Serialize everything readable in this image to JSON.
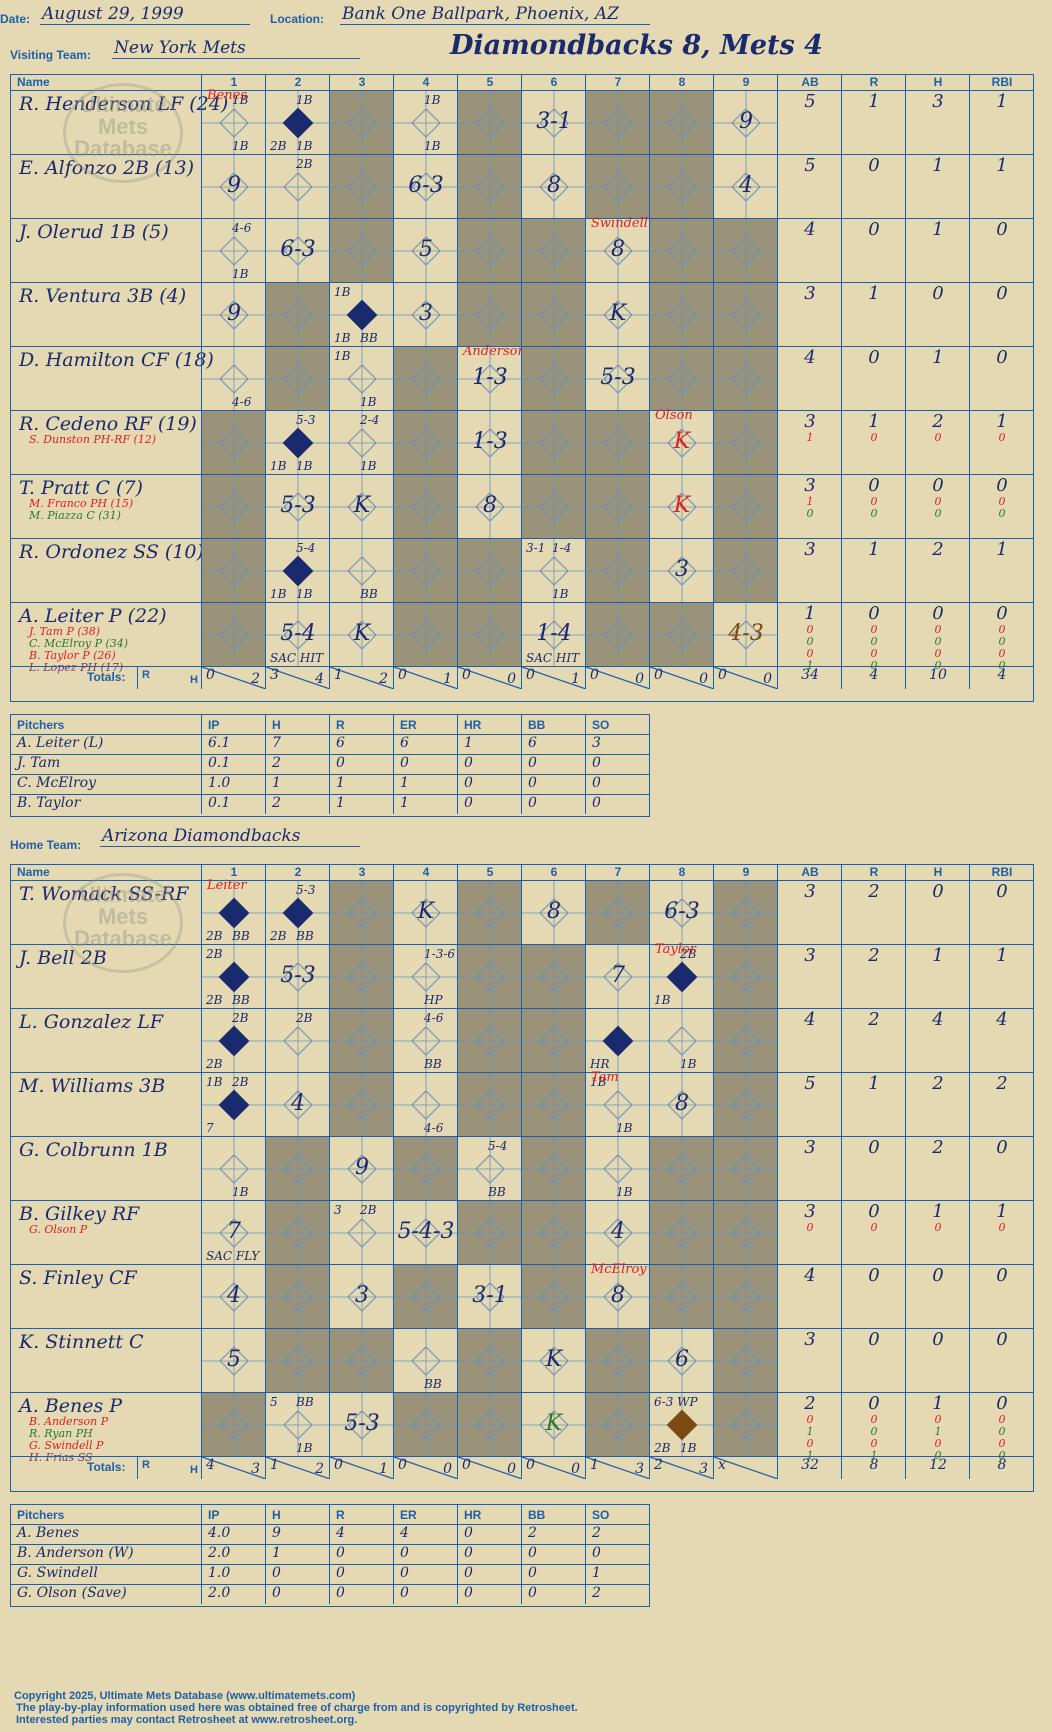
{
  "header": {
    "date_label": "Date:",
    "date": "August 29, 1999",
    "location_label": "Location:",
    "location": "Bank One Ballpark, Phoenix, AZ",
    "visiting_label": "Visiting Team:",
    "visiting_team": "New York Mets",
    "title": "Diamondbacks 8, Mets 4",
    "home_label": "Home Team:",
    "home_team": "Arizona Diamondbacks"
  },
  "columns": {
    "name": "Name",
    "innings": [
      "1",
      "2",
      "3",
      "4",
      "5",
      "6",
      "7",
      "8",
      "9"
    ],
    "stats": [
      "AB",
      "R",
      "H",
      "RBI"
    ],
    "totals_label": "Totals:",
    "r_label": "R",
    "h_label": "H"
  },
  "watermark": {
    "text": "Ultimate Mets Database",
    "url": "ultimatemets.com"
  },
  "visitors": {
    "players": [
      {
        "name": "R. Henderson LF (24)",
        "subs": [],
        "stats": [
          "5",
          "1",
          "3",
          "1"
        ],
        "substats": []
      },
      {
        "name": "E. Alfonzo 2B (13)",
        "subs": [],
        "stats": [
          "5",
          "0",
          "1",
          "1"
        ],
        "substats": []
      },
      {
        "name": "J. Olerud 1B (5)",
        "subs": [],
        "stats": [
          "4",
          "0",
          "1",
          "0"
        ],
        "substats": []
      },
      {
        "name": "R. Ventura 3B (4)",
        "subs": [],
        "stats": [
          "3",
          "1",
          "0",
          "0"
        ],
        "substats": []
      },
      {
        "name": "D. Hamilton CF (18)",
        "subs": [],
        "stats": [
          "4",
          "0",
          "1",
          "0"
        ],
        "substats": []
      },
      {
        "name": "R. Cedeno RF (19)",
        "subs": [
          "S. Dunston PH-RF (12)"
        ],
        "stats": [
          "3",
          "1",
          "2",
          "1"
        ],
        "substats": [
          [
            "1",
            "0",
            "0",
            "0"
          ]
        ]
      },
      {
        "name": "T. Pratt C (7)",
        "subs": [
          "M. Franco PH (15)",
          "M. Piazza C (31)"
        ],
        "stats": [
          "3",
          "0",
          "0",
          "0"
        ],
        "substats": [
          [
            "1",
            "0",
            "0",
            "0"
          ],
          [
            "0",
            "0",
            "0",
            "0"
          ]
        ]
      },
      {
        "name": "R. Ordonez SS (10)",
        "subs": [],
        "stats": [
          "3",
          "1",
          "2",
          "1"
        ],
        "substats": []
      },
      {
        "name": "A. Leiter P (22)",
        "subs": [
          "J. Tam P (38)",
          "C. McElroy P (34)",
          "B. Taylor P (26)",
          "L. Lopez PH (17)"
        ],
        "stats": [
          "1",
          "0",
          "0",
          "0"
        ],
        "substats": [
          [
            "0",
            "0",
            "0",
            "0"
          ],
          [
            "0",
            "0",
            "0",
            "0"
          ],
          [
            "0",
            "0",
            "0",
            "0"
          ],
          [
            "1",
            "0",
            "0",
            "0"
          ]
        ]
      }
    ],
    "cells": [
      [
        {
          "tr": "1B",
          "br": "1B",
          "note": "Benes"
        },
        {
          "d": "run",
          "tr": "1B",
          "bl": "2B",
          "br": "1B"
        },
        {},
        {
          "tr": "1B",
          "br": "1B"
        },
        {},
        {
          "p": "3-1"
        },
        {},
        {},
        {
          "p": "9"
        }
      ],
      [
        {
          "p": "9"
        },
        {
          "tr": "2B"
        },
        {},
        {
          "p": "6-3"
        },
        {},
        {
          "p": "8"
        },
        {},
        {},
        {
          "p": "4"
        }
      ],
      [
        {
          "tr": "4-6",
          "br": "1B"
        },
        {
          "p": "6-3"
        },
        {},
        {
          "p": "5"
        },
        {},
        {},
        {
          "p": "8",
          "note": "Swindell"
        },
        {},
        {}
      ],
      [
        {
          "p": "9"
        },
        {},
        {
          "d": "run",
          "tl": "1B",
          "bl": "1B",
          "br": "BB"
        },
        {
          "p": "3"
        },
        {},
        {},
        {
          "p": "K"
        },
        {},
        {}
      ],
      [
        {
          "br": "4-6"
        },
        {},
        {
          "tl": "1B",
          "br": "1B"
        },
        {},
        {
          "p": "1-3",
          "note": "Anderson"
        },
        {},
        {
          "p": "5-3"
        },
        {},
        {}
      ],
      [
        {},
        {
          "d": "run",
          "tr": "5-3",
          "bl": "1B",
          "br": "1B"
        },
        {
          "tr": "2-4",
          "br": "1B"
        },
        {},
        {
          "p": "1-3"
        },
        {},
        {},
        {
          "p": "K",
          "red": true,
          "note": "Olson"
        },
        {}
      ],
      [
        {},
        {
          "p": "5-3"
        },
        {
          "p": "K"
        },
        {},
        {
          "p": "8"
        },
        {},
        {},
        {
          "p": "K",
          "red": true
        },
        {}
      ],
      [
        {},
        {
          "d": "run",
          "tr": "5-4",
          "bl": "1B",
          "br": "1B"
        },
        {
          "br": "BB"
        },
        {},
        {},
        {
          "tl": "3-1",
          "tr": "1-4",
          "br": "1B"
        },
        {},
        {
          "p": "3"
        },
        {}
      ],
      [
        {},
        {
          "p": "5-4",
          "bl": "SAC HIT"
        },
        {
          "p": "K"
        },
        {},
        {},
        {
          "p": "1-4",
          "bl": "SAC HIT"
        },
        {},
        {},
        {
          "p": "4-3",
          "brown": true
        }
      ]
    ],
    "shade": [
      [
        0,
        0,
        1,
        0,
        1,
        0,
        1,
        1,
        0
      ],
      [
        0,
        0,
        1,
        0,
        1,
        0,
        1,
        1,
        0
      ],
      [
        0,
        0,
        1,
        0,
        1,
        1,
        0,
        1,
        1
      ],
      [
        0,
        1,
        0,
        0,
        1,
        1,
        0,
        1,
        1
      ],
      [
        0,
        1,
        0,
        1,
        0,
        1,
        0,
        1,
        1
      ],
      [
        1,
        0,
        0,
        1,
        0,
        1,
        1,
        0,
        1
      ],
      [
        1,
        0,
        0,
        1,
        0,
        1,
        1,
        0,
        1
      ],
      [
        1,
        0,
        0,
        1,
        1,
        0,
        1,
        0,
        1
      ],
      [
        1,
        0,
        0,
        1,
        1,
        0,
        1,
        1,
        0
      ]
    ],
    "totals": [
      [
        "0",
        "2"
      ],
      [
        "3",
        "4"
      ],
      [
        "1",
        "2"
      ],
      [
        "0",
        "1"
      ],
      [
        "0",
        "0"
      ],
      [
        "0",
        "1"
      ],
      [
        "0",
        "0"
      ],
      [
        "0",
        "0"
      ],
      [
        "0",
        "0"
      ]
    ],
    "totals_stats": [
      "34",
      "4",
      "10",
      "4"
    ],
    "pitchers_label": "Pitchers",
    "pitch_cols": [
      "IP",
      "H",
      "R",
      "ER",
      "HR",
      "BB",
      "SO"
    ],
    "pitchers": [
      [
        "A. Leiter (L)",
        "6.1",
        "7",
        "6",
        "6",
        "1",
        "6",
        "3"
      ],
      [
        "J. Tam",
        "0.1",
        "2",
        "0",
        "0",
        "0",
        "0",
        "0"
      ],
      [
        "C. McElroy",
        "1.0",
        "1",
        "1",
        "1",
        "0",
        "0",
        "0"
      ],
      [
        "B. Taylor",
        "0.1",
        "2",
        "1",
        "1",
        "0",
        "0",
        "0"
      ]
    ]
  },
  "home": {
    "players": [
      {
        "name": "T. Womack SS-RF",
        "subs": [],
        "stats": [
          "3",
          "2",
          "0",
          "0"
        ],
        "substats": []
      },
      {
        "name": "J. Bell 2B",
        "subs": [],
        "stats": [
          "3",
          "2",
          "1",
          "1"
        ],
        "substats": []
      },
      {
        "name": "L. Gonzalez LF",
        "subs": [],
        "stats": [
          "4",
          "2",
          "4",
          "4"
        ],
        "substats": []
      },
      {
        "name": "M. Williams 3B",
        "subs": [],
        "stats": [
          "5",
          "1",
          "2",
          "2"
        ],
        "substats": []
      },
      {
        "name": "G. Colbrunn 1B",
        "subs": [],
        "stats": [
          "3",
          "0",
          "2",
          "0"
        ],
        "substats": []
      },
      {
        "name": "B. Gilkey RF",
        "subs": [
          "G. Olson P"
        ],
        "stats": [
          "3",
          "0",
          "1",
          "1"
        ],
        "substats": [
          [
            "0",
            "0",
            "0",
            "0"
          ]
        ]
      },
      {
        "name": "S. Finley CF",
        "subs": [],
        "stats": [
          "4",
          "0",
          "0",
          "0"
        ],
        "substats": []
      },
      {
        "name": "K. Stinnett C",
        "subs": [],
        "stats": [
          "3",
          "0",
          "0",
          "0"
        ],
        "substats": []
      },
      {
        "name": "A. Benes P",
        "subs": [
          "B. Anderson P",
          "R. Ryan PH",
          "G. Swindell P",
          "H. Frias SS"
        ],
        "stats": [
          "2",
          "0",
          "1",
          "0"
        ],
        "substats": [
          [
            "0",
            "0",
            "0",
            "0"
          ],
          [
            "1",
            "0",
            "1",
            "0"
          ],
          [
            "0",
            "0",
            "0",
            "0"
          ],
          [
            "1",
            "1",
            "0",
            "0"
          ]
        ]
      }
    ],
    "cells": [
      [
        {
          "d": "run",
          "bl": "2B",
          "br": "BB",
          "note": "Leiter"
        },
        {
          "d": "run",
          "tr": "5-3",
          "bl": "2B",
          "br": "BB"
        },
        {},
        {
          "p": "K"
        },
        {},
        {
          "p": "8"
        },
        {},
        {
          "p": "6-3"
        },
        {}
      ],
      [
        {
          "d": "run",
          "tl": "2B",
          "bl": "2B",
          "br": "BB"
        },
        {
          "p": "5-3"
        },
        {},
        {
          "tr": "1-3-6",
          "br": "HP"
        },
        {},
        {},
        {
          "p": "7"
        },
        {
          "d": "run",
          "tr": "2B",
          "bl": "1B",
          "note": "Taylor"
        },
        {}
      ],
      [
        {
          "d": "run",
          "tr": "2B",
          "bl": "2B"
        },
        {
          "tr": "2B"
        },
        {},
        {
          "tr": "4-6",
          "br": "BB"
        },
        {},
        {},
        {
          "d": "run",
          "bl": "HR"
        },
        {
          "br": "1B"
        },
        {}
      ],
      [
        {
          "d": "run",
          "tl": "1B",
          "tr": "2B",
          "bl": "7"
        },
        {
          "p": "4"
        },
        {},
        {
          "br": "4-6"
        },
        {},
        {},
        {
          "tl": "1B",
          "br": "1B",
          "note": "Tam"
        },
        {
          "p": "8"
        },
        {}
      ],
      [
        {
          "br": "1B"
        },
        {},
        {
          "p": "9"
        },
        {},
        {
          "tr": "5-4",
          "br": "BB"
        },
        {},
        {
          "br": "1B"
        },
        {},
        {}
      ],
      [
        {
          "p": "7",
          "bl": "SAC FLY"
        },
        {},
        {
          "tl": "3",
          "tr": "2B"
        },
        {
          "p": "5-4-3"
        },
        {},
        {},
        {
          "p": "4"
        },
        {},
        {}
      ],
      [
        {
          "p": "4"
        },
        {},
        {
          "p": "3"
        },
        {},
        {
          "p": "3-1"
        },
        {},
        {
          "p": "8",
          "note": "McElroy"
        },
        {},
        {}
      ],
      [
        {
          "p": "5"
        },
        {},
        {},
        {
          "br": "BB"
        },
        {},
        {
          "p": "K"
        },
        {},
        {
          "p": "6"
        },
        {}
      ],
      [
        {},
        {
          "tl": "5",
          "tr": "BB",
          "br": "1B"
        },
        {
          "p": "5-3"
        },
        {},
        {},
        {
          "p": "K",
          "green": true
        },
        {},
        {
          "d": "brown",
          "tl": "6-3 WP",
          "bl": "2B",
          "br": "1B"
        },
        {}
      ]
    ],
    "shade": [
      [
        0,
        0,
        1,
        0,
        1,
        0,
        1,
        0,
        1
      ],
      [
        0,
        0,
        1,
        0,
        1,
        1,
        0,
        0,
        1
      ],
      [
        0,
        0,
        1,
        0,
        1,
        1,
        0,
        0,
        1
      ],
      [
        0,
        0,
        1,
        0,
        1,
        1,
        0,
        0,
        1
      ],
      [
        0,
        1,
        0,
        1,
        0,
        1,
        0,
        1,
        1
      ],
      [
        0,
        1,
        0,
        0,
        1,
        1,
        0,
        1,
        1
      ],
      [
        0,
        1,
        0,
        1,
        0,
        1,
        0,
        1,
        1
      ],
      [
        0,
        1,
        1,
        0,
        1,
        0,
        1,
        0,
        1
      ],
      [
        1,
        0,
        0,
        1,
        1,
        0,
        1,
        0,
        1
      ]
    ],
    "totals": [
      [
        "4",
        "3"
      ],
      [
        "1",
        "2"
      ],
      [
        "0",
        "1"
      ],
      [
        "0",
        "0"
      ],
      [
        "0",
        "0"
      ],
      [
        "0",
        "0"
      ],
      [
        "1",
        "3"
      ],
      [
        "2",
        "3"
      ],
      [
        "x",
        ""
      ]
    ],
    "totals_stats": [
      "32",
      "8",
      "12",
      "8"
    ],
    "pitchers_label": "Pitchers",
    "pitch_cols": [
      "IP",
      "H",
      "R",
      "ER",
      "HR",
      "BB",
      "SO"
    ],
    "pitchers": [
      [
        "A. Benes",
        "4.0",
        "9",
        "4",
        "4",
        "0",
        "2",
        "2"
      ],
      [
        "B. Anderson (W)",
        "2.0",
        "1",
        "0",
        "0",
        "0",
        "0",
        "0"
      ],
      [
        "G. Swindell",
        "1.0",
        "0",
        "0",
        "0",
        "0",
        "0",
        "1"
      ],
      [
        "G. Olson (Save)",
        "2.0",
        "0",
        "0",
        "0",
        "0",
        "0",
        "2"
      ]
    ]
  },
  "colors": {
    "ink": "#1a2a6c",
    "line": "#1f5fa8",
    "shade": "#9a937a",
    "paper": "#e4d9b3",
    "red": "#e02020",
    "green": "#2a7a2a",
    "brown": "#7a4a10"
  },
  "footer": {
    "copyright": "Copyright 2025, Ultimate Mets Database (www.ultimatemets.com)",
    "line2": "The play-by-play information used here was obtained free of charge from and is copyrighted by Retrosheet.",
    "line3": "Interested parties may contact Retrosheet at www.retrosheet.org."
  }
}
